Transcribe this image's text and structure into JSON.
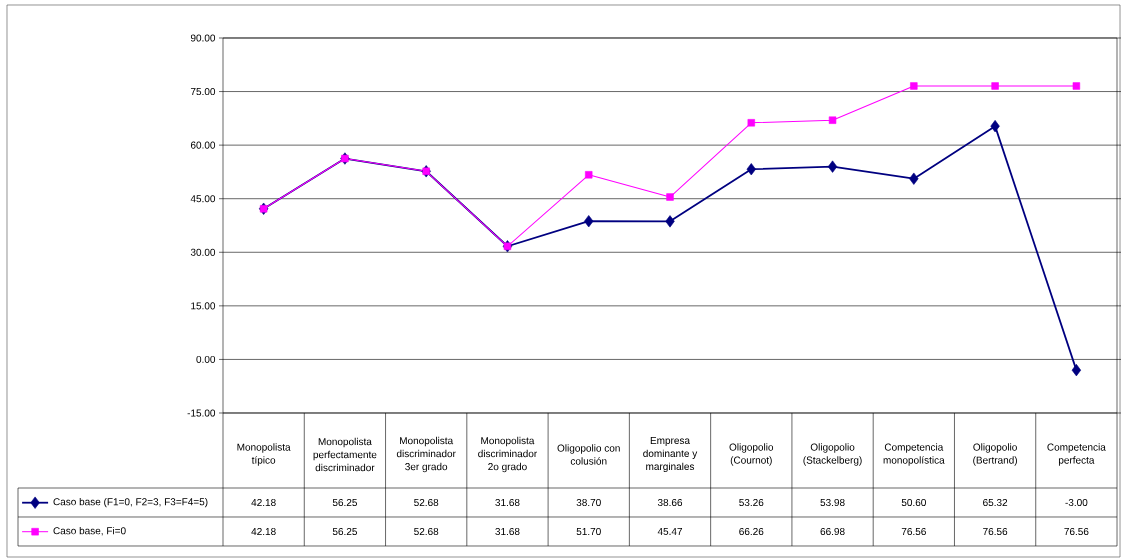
{
  "chart_data": {
    "type": "line",
    "categories": [
      "Monopolista típico",
      "Monopolista perfectamente discriminador",
      "Monopolista discriminador 3er grado",
      "Monopolista discriminador 2o grado",
      "Oligopolio con colusión",
      "Empresa dominante y marginales",
      "Oligopolio (Cournot)",
      "Oligopolio (Stackelberg)",
      "Competencia monopolística",
      "Oligopolio (Bertrand)",
      "Competencia perfecta"
    ],
    "series": [
      {
        "name": "Caso base (F1=0, F2=3, F3=F4=5)",
        "color": "#000080",
        "marker": "diamond",
        "values": [
          42.18,
          56.25,
          52.68,
          31.68,
          38.7,
          38.66,
          53.26,
          53.98,
          50.6,
          65.32,
          -3.0
        ],
        "value_labels": [
          "42.18",
          "56.25",
          "52.68",
          "31.68",
          "38.70",
          "38.66",
          "53.26",
          "53.98",
          "50.60",
          "65.32",
          "-3.00"
        ]
      },
      {
        "name": "Caso base, Fi=0",
        "color": "#ff00ff",
        "marker": "square",
        "values": [
          42.18,
          56.25,
          52.68,
          31.68,
          51.7,
          45.47,
          66.26,
          66.98,
          76.56,
          76.56,
          76.56
        ],
        "value_labels": [
          "42.18",
          "56.25",
          "52.68",
          "31.68",
          "51.70",
          "45.47",
          "66.26",
          "66.98",
          "76.56",
          "76.56",
          "76.56"
        ]
      }
    ],
    "ylim": [
      -15,
      90
    ],
    "yticks": [
      {
        "value": -15,
        "label": "-15.00"
      },
      {
        "value": 0,
        "label": "0.00"
      },
      {
        "value": 15,
        "label": "15.00"
      },
      {
        "value": 30,
        "label": "30.00"
      },
      {
        "value": 45,
        "label": "45.00"
      },
      {
        "value": 60,
        "label": "60.00"
      },
      {
        "value": 75,
        "label": "75.00"
      },
      {
        "value": 90,
        "label": "90.00"
      }
    ],
    "grid": "y",
    "legend": "bottom"
  }
}
